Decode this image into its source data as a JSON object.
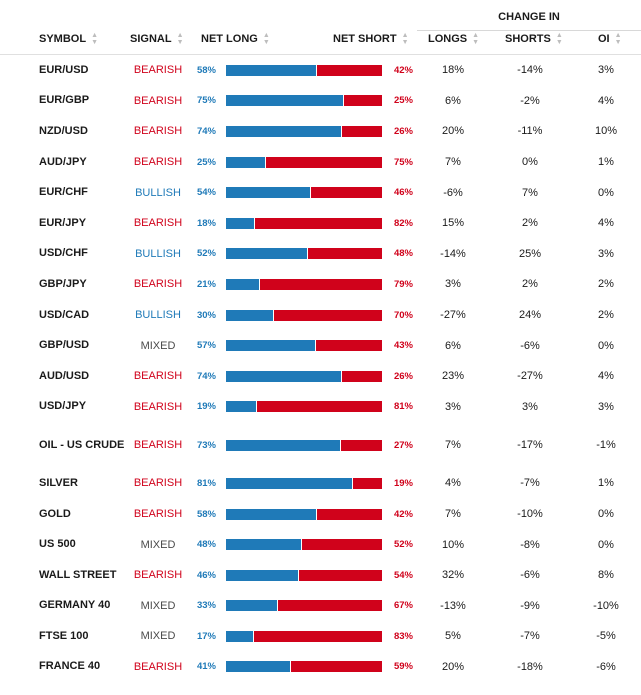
{
  "header": {
    "change_in": "CHANGE IN",
    "symbol": "SYMBOL",
    "signal": "SIGNAL",
    "net_long": "NET LONG",
    "net_short": "NET SHORT",
    "longs": "LONGS",
    "shorts": "SHORTS",
    "oi": "OI"
  },
  "colors": {
    "bearish": "#d0021b",
    "bullish": "#1f7ab8",
    "mixed": "#4a4a4a"
  },
  "rows": [
    {
      "symbol": "EUR/USD",
      "signal": "BEARISH",
      "net_long": "58%",
      "net_short": "42%",
      "long_pct": 58,
      "longs": "18%",
      "shorts": "-14%",
      "oi": "3%"
    },
    {
      "symbol": "EUR/GBP",
      "signal": "BEARISH",
      "net_long": "75%",
      "net_short": "25%",
      "long_pct": 75,
      "longs": "6%",
      "shorts": "-2%",
      "oi": "4%"
    },
    {
      "symbol": "NZD/USD",
      "signal": "BEARISH",
      "net_long": "74%",
      "net_short": "26%",
      "long_pct": 74,
      "longs": "20%",
      "shorts": "-11%",
      "oi": "10%"
    },
    {
      "symbol": "AUD/JPY",
      "signal": "BEARISH",
      "net_long": "25%",
      "net_short": "75%",
      "long_pct": 25,
      "longs": "7%",
      "shorts": "0%",
      "oi": "1%"
    },
    {
      "symbol": "EUR/CHF",
      "signal": "BULLISH",
      "net_long": "54%",
      "net_short": "46%",
      "long_pct": 54,
      "longs": "-6%",
      "shorts": "7%",
      "oi": "0%"
    },
    {
      "symbol": "EUR/JPY",
      "signal": "BEARISH",
      "net_long": "18%",
      "net_short": "82%",
      "long_pct": 18,
      "longs": "15%",
      "shorts": "2%",
      "oi": "4%"
    },
    {
      "symbol": "USD/CHF",
      "signal": "BULLISH",
      "net_long": "52%",
      "net_short": "48%",
      "long_pct": 52,
      "longs": "-14%",
      "shorts": "25%",
      "oi": "3%"
    },
    {
      "symbol": "GBP/JPY",
      "signal": "BEARISH",
      "net_long": "21%",
      "net_short": "79%",
      "long_pct": 21,
      "longs": "3%",
      "shorts": "2%",
      "oi": "2%"
    },
    {
      "symbol": "USD/CAD",
      "signal": "BULLISH",
      "net_long": "30%",
      "net_short": "70%",
      "long_pct": 30,
      "longs": "-27%",
      "shorts": "24%",
      "oi": "2%"
    },
    {
      "symbol": "GBP/USD",
      "signal": "MIXED",
      "net_long": "57%",
      "net_short": "43%",
      "long_pct": 57,
      "longs": "6%",
      "shorts": "-6%",
      "oi": "0%"
    },
    {
      "symbol": "AUD/USD",
      "signal": "BEARISH",
      "net_long": "74%",
      "net_short": "26%",
      "long_pct": 74,
      "longs": "23%",
      "shorts": "-27%",
      "oi": "4%"
    },
    {
      "symbol": "USD/JPY",
      "signal": "BEARISH",
      "net_long": "19%",
      "net_short": "81%",
      "long_pct": 19,
      "longs": "3%",
      "shorts": "3%",
      "oi": "3%"
    },
    {
      "symbol": "OIL - US CRUDE",
      "signal": "BEARISH",
      "net_long": "73%",
      "net_short": "27%",
      "long_pct": 73,
      "longs": "7%",
      "shorts": "-17%",
      "oi": "-1%"
    },
    {
      "symbol": "SILVER",
      "signal": "BEARISH",
      "net_long": "81%",
      "net_short": "19%",
      "long_pct": 81,
      "longs": "4%",
      "shorts": "-7%",
      "oi": "1%"
    },
    {
      "symbol": "GOLD",
      "signal": "BEARISH",
      "net_long": "58%",
      "net_short": "42%",
      "long_pct": 58,
      "longs": "7%",
      "shorts": "-10%",
      "oi": "0%"
    },
    {
      "symbol": "US 500",
      "signal": "MIXED",
      "net_long": "48%",
      "net_short": "52%",
      "long_pct": 48,
      "longs": "10%",
      "shorts": "-8%",
      "oi": "0%"
    },
    {
      "symbol": "WALL STREET",
      "signal": "BEARISH",
      "net_long": "46%",
      "net_short": "54%",
      "long_pct": 46,
      "longs": "32%",
      "shorts": "-6%",
      "oi": "8%"
    },
    {
      "symbol": "GERMANY 40",
      "signal": "MIXED",
      "net_long": "33%",
      "net_short": "67%",
      "long_pct": 33,
      "longs": "-13%",
      "shorts": "-9%",
      "oi": "-10%"
    },
    {
      "symbol": "FTSE 100",
      "signal": "MIXED",
      "net_long": "17%",
      "net_short": "83%",
      "long_pct": 17,
      "longs": "5%",
      "shorts": "-7%",
      "oi": "-5%"
    },
    {
      "symbol": "FRANCE 40",
      "signal": "BEARISH",
      "net_long": "41%",
      "net_short": "59%",
      "long_pct": 41,
      "longs": "20%",
      "shorts": "-18%",
      "oi": "-6%"
    }
  ]
}
